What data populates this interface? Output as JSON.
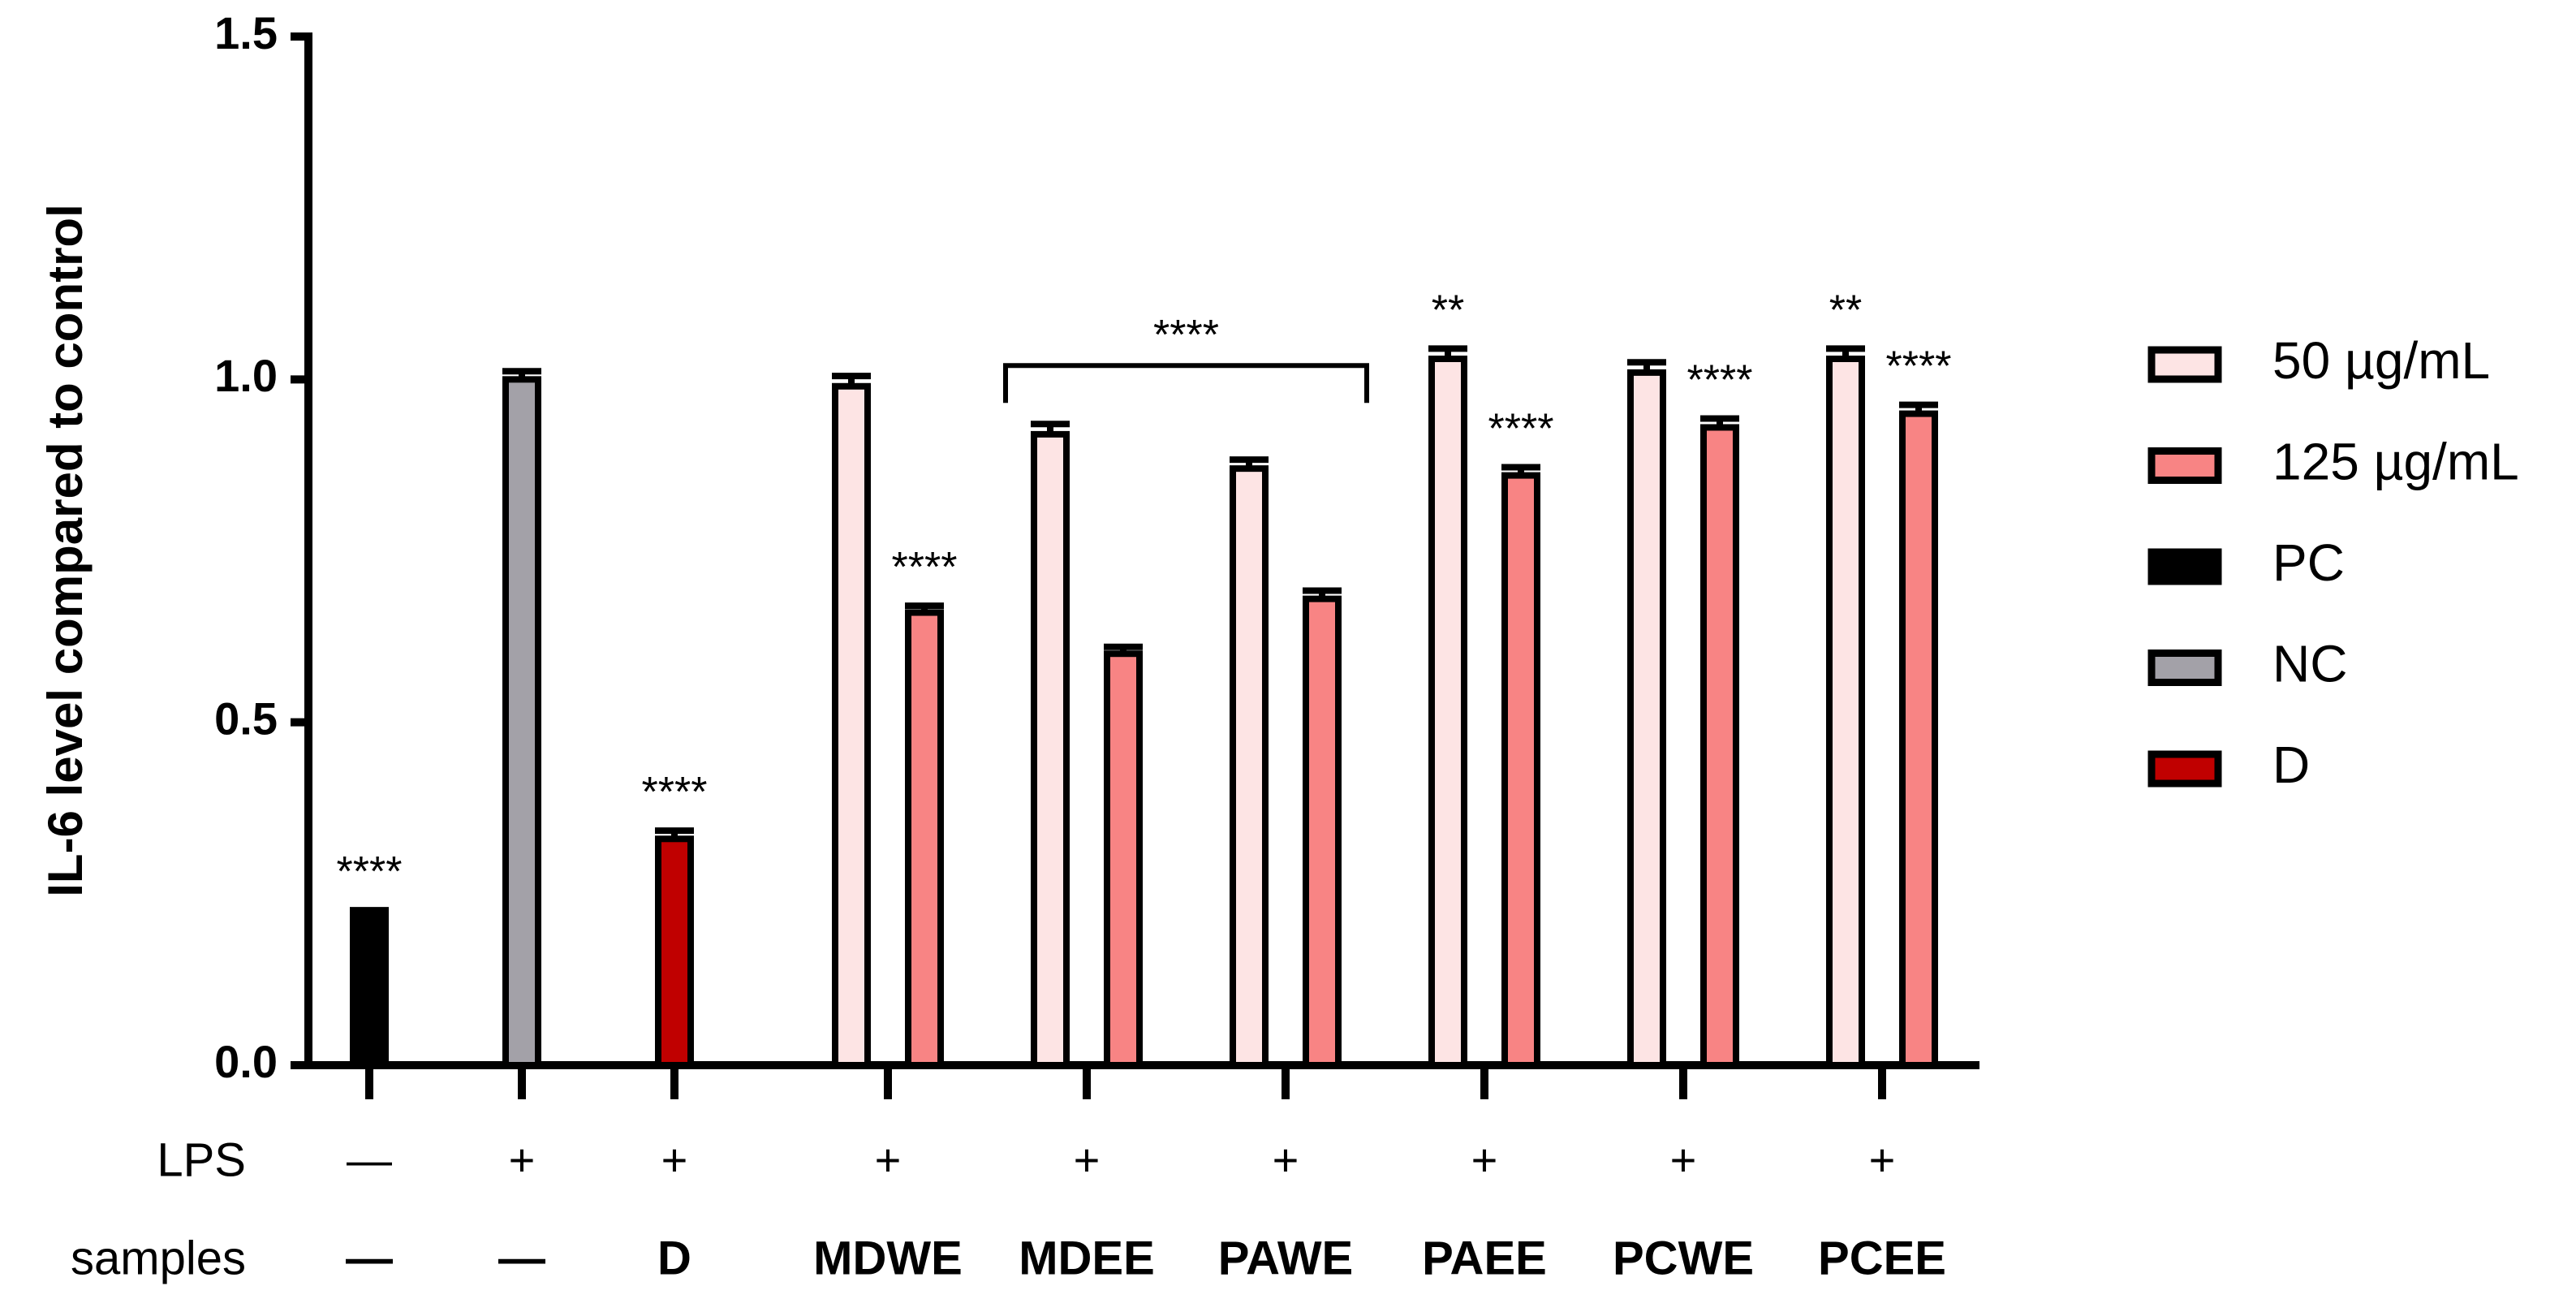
{
  "chart_data": {
    "type": "bar",
    "y_label": "IL-6 level compared to control",
    "categories": [
      "—",
      "—",
      "D",
      "MDWE",
      "MDEE",
      "PAWE",
      "PAEE",
      "PCWE",
      "PCEE"
    ],
    "category_label": "samples",
    "lps_label": "LPS",
    "lps": [
      "—",
      "+",
      "+",
      "+",
      "+",
      "+",
      "+",
      "+",
      "+"
    ],
    "ylim": [
      0,
      1.5
    ],
    "yticks": [
      {
        "value": 0,
        "label": "0.0"
      },
      {
        "value": 0.5,
        "label": "0.5"
      },
      {
        "value": 1,
        "label": "1.0"
      },
      {
        "value": 1.5,
        "label": "1.5"
      }
    ],
    "series": [
      {
        "name": "50 µg/mL",
        "color": "#fde4e4",
        "values": [
          null,
          null,
          null,
          0.99,
          0.92,
          0.87,
          1.03,
          1.01,
          1.03
        ],
        "errors": [
          null,
          null,
          null,
          0.015,
          0.015,
          0.013,
          0.015,
          0.015,
          0.015
        ],
        "significance": [
          null,
          null,
          null,
          null,
          null,
          null,
          "**",
          null,
          "**"
        ]
      },
      {
        "name": "125 µg/mL",
        "color": "#f88484",
        "values": [
          null,
          null,
          null,
          0.66,
          0.6,
          0.68,
          0.86,
          0.93,
          0.95
        ],
        "errors": [
          null,
          null,
          null,
          0.01,
          0.01,
          0.012,
          0.012,
          0.013,
          0.013
        ],
        "significance": [
          null,
          null,
          null,
          "****",
          null,
          null,
          "****",
          "****",
          "****"
        ]
      },
      {
        "name": "PC",
        "color": "#000000",
        "values": [
          0.22,
          null,
          null,
          null,
          null,
          null,
          null,
          null,
          null
        ],
        "errors": [
          0.006,
          null,
          null,
          null,
          null,
          null,
          null,
          null,
          null
        ],
        "significance": [
          "****",
          null,
          null,
          null,
          null,
          null,
          null,
          null,
          null
        ]
      },
      {
        "name": "NC",
        "color": "#a3a1a8",
        "values": [
          null,
          1.0,
          null,
          null,
          null,
          null,
          null,
          null,
          null
        ],
        "errors": [
          null,
          0.012,
          null,
          null,
          null,
          null,
          null,
          null,
          null
        ]
      },
      {
        "name": "D",
        "color": "#c00000",
        "values": [
          null,
          null,
          0.33,
          null,
          null,
          null,
          null,
          null,
          null
        ],
        "errors": [
          null,
          null,
          0.012,
          null,
          null,
          null,
          null,
          null,
          null
        ],
        "significance": [
          null,
          null,
          "****",
          null,
          null,
          null,
          null,
          null,
          null
        ]
      }
    ],
    "bracket": {
      "label": "****",
      "from": 4,
      "to": 5
    }
  }
}
